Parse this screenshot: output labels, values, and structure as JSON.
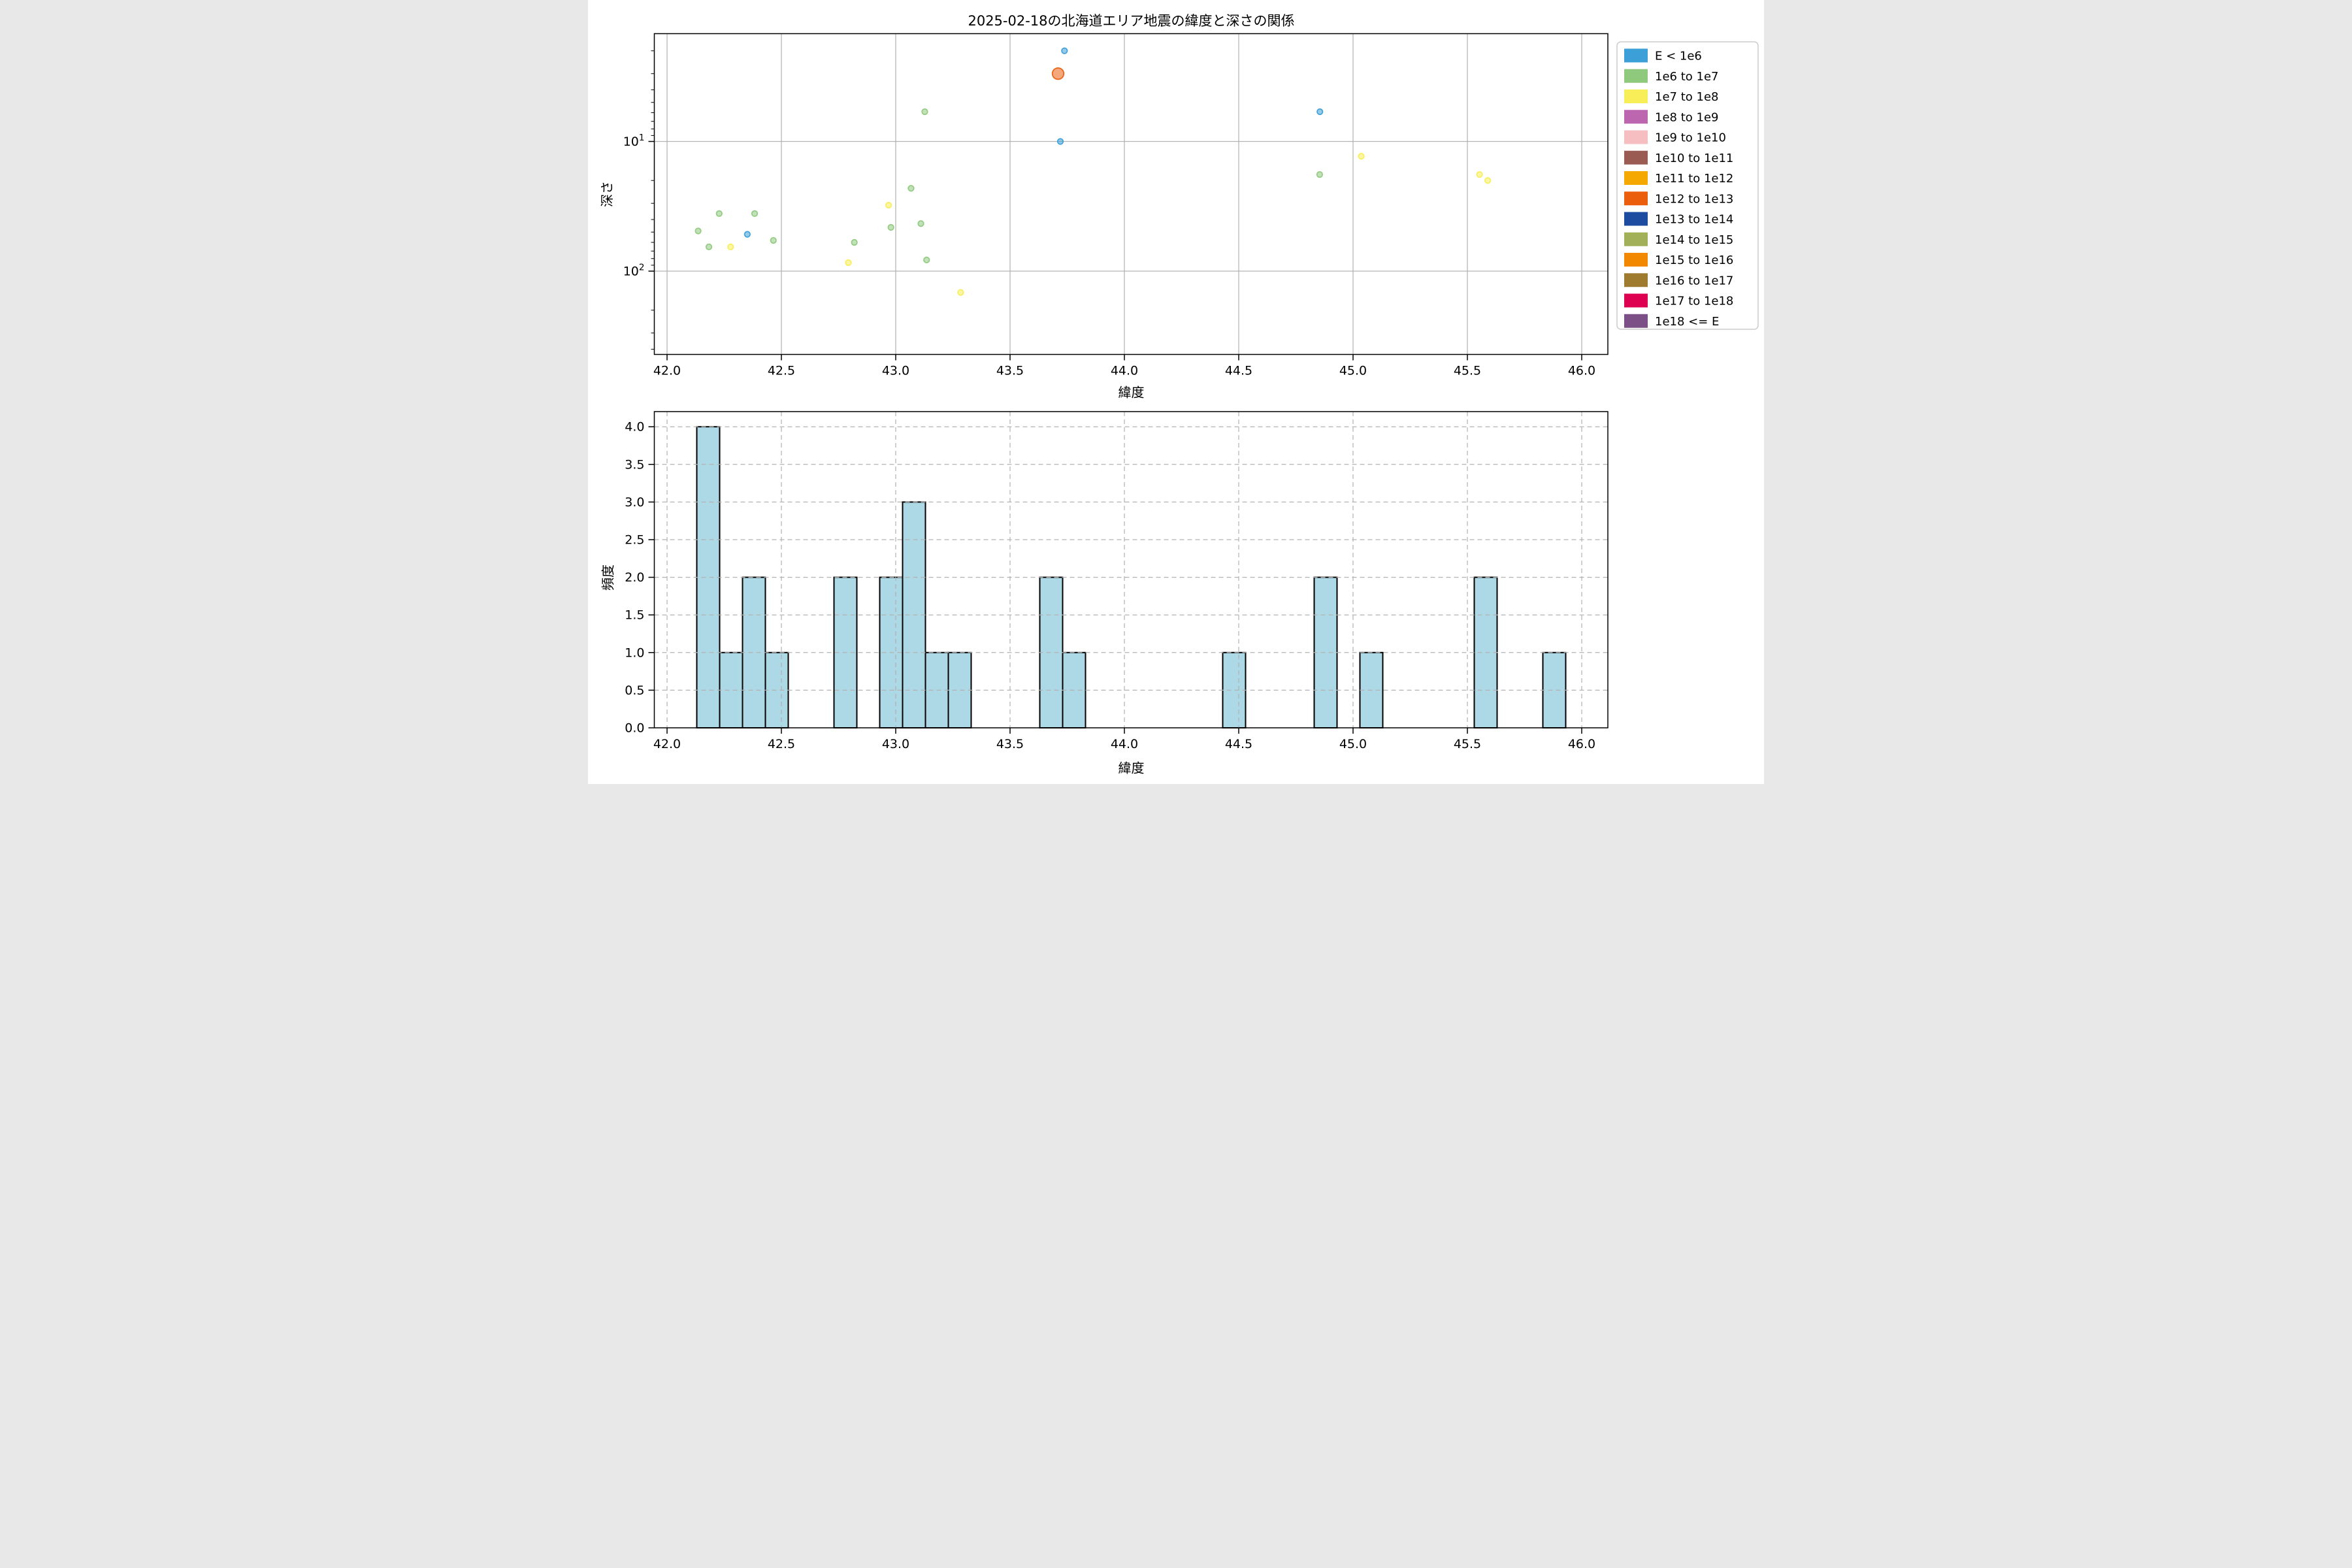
{
  "title": "2025-02-18の北海道エリア地震の緯度と深さの関係",
  "legend": {
    "items": [
      {
        "label": "E < 1e6",
        "color": "#3D9FD8"
      },
      {
        "label": "1e6 to 1e7",
        "color": "#8FC97E"
      },
      {
        "label": "1e7 to 1e8",
        "color": "#F7EE58"
      },
      {
        "label": "1e8 to 1e9",
        "color": "#BC66AF"
      },
      {
        "label": "1e9 to 1e10",
        "color": "#F6BEC1"
      },
      {
        "label": "1e10 to 1e11",
        "color": "#9A5B52"
      },
      {
        "label": "1e11 to 1e12",
        "color": "#F4A800"
      },
      {
        "label": "1e12 to 1e13",
        "color": "#EA5E0C"
      },
      {
        "label": "1e13 to 1e14",
        "color": "#1C4C9F"
      },
      {
        "label": "1e14 to 1e15",
        "color": "#A2B158"
      },
      {
        "label": "1e15 to 1e16",
        "color": "#F18800"
      },
      {
        "label": "1e16 to 1e17",
        "color": "#9E7B2F"
      },
      {
        "label": "1e17 to 1e18",
        "color": "#DE0051"
      },
      {
        "label": "1e18 <= E",
        "color": "#7D4F87"
      }
    ]
  },
  "chart_data": [
    {
      "type": "scatter",
      "title": "2025-02-18の北海道エリア地震の緯度と深さの関係",
      "xlabel": "緯度",
      "ylabel": "深さ",
      "x_range": [
        41.946,
        46.12
      ],
      "xticks": [
        42.0,
        42.5,
        43.0,
        43.5,
        44.0,
        44.5,
        45.0,
        45.5,
        46.0
      ],
      "y_scale": "log",
      "y_inverted": true,
      "y_range": [
        1.47,
        438
      ],
      "yticks": [
        10,
        100
      ],
      "grid": "solid",
      "legend_position": "outside-upper-right",
      "points": [
        {
          "lat": 42.136,
          "depth": 49,
          "bin": "1e6 to 1e7",
          "size": "small"
        },
        {
          "lat": 42.183,
          "depth": 65,
          "bin": "1e6 to 1e7",
          "size": "small"
        },
        {
          "lat": 42.228,
          "depth": 36,
          "bin": "1e6 to 1e7",
          "size": "small"
        },
        {
          "lat": 42.278,
          "depth": 65,
          "bin": "1e7 to 1e8",
          "size": "small"
        },
        {
          "lat": 42.351,
          "depth": 52,
          "bin": "E < 1e6",
          "size": "small"
        },
        {
          "lat": 42.383,
          "depth": 36,
          "bin": "1e6 to 1e7",
          "size": "small"
        },
        {
          "lat": 42.465,
          "depth": 58,
          "bin": "1e6 to 1e7",
          "size": "small"
        },
        {
          "lat": 42.793,
          "depth": 86,
          "bin": "1e7 to 1e8",
          "size": "small"
        },
        {
          "lat": 42.819,
          "depth": 60,
          "bin": "1e6 to 1e7",
          "size": "small"
        },
        {
          "lat": 42.969,
          "depth": 31,
          "bin": "1e7 to 1e8",
          "size": "small"
        },
        {
          "lat": 42.979,
          "depth": 46,
          "bin": "1e6 to 1e7",
          "size": "small"
        },
        {
          "lat": 43.067,
          "depth": 23,
          "bin": "1e6 to 1e7",
          "size": "small"
        },
        {
          "lat": 43.11,
          "depth": 43,
          "bin": "1e6 to 1e7",
          "size": "small"
        },
        {
          "lat": 43.127,
          "depth": 5.9,
          "bin": "1e6 to 1e7",
          "size": "small"
        },
        {
          "lat": 43.135,
          "depth": 82,
          "bin": "1e6 to 1e7",
          "size": "small"
        },
        {
          "lat": 43.284,
          "depth": 146,
          "bin": "1e7 to 1e8",
          "size": "small"
        },
        {
          "lat": 43.71,
          "depth": 3.0,
          "bin": "1e12 to 1e13",
          "size": "large"
        },
        {
          "lat": 43.738,
          "depth": 2.0,
          "bin": "E < 1e6",
          "size": "small"
        },
        {
          "lat": 43.72,
          "depth": 10.0,
          "bin": "E < 1e6",
          "size": "small"
        },
        {
          "lat": 44.855,
          "depth": 5.9,
          "bin": "E < 1e6",
          "size": "small"
        },
        {
          "lat": 44.854,
          "depth": 18,
          "bin": "1e6 to 1e7",
          "size": "small"
        },
        {
          "lat": 45.036,
          "depth": 13,
          "bin": "1e7 to 1e8",
          "size": "small"
        },
        {
          "lat": 45.553,
          "depth": 18,
          "bin": "1e7 to 1e8",
          "size": "small"
        },
        {
          "lat": 45.589,
          "depth": 20,
          "bin": "1e7 to 1e8",
          "size": "small"
        }
      ]
    },
    {
      "type": "bar",
      "title": "",
      "xlabel": "緯度",
      "ylabel": "頻度",
      "x_range": [
        41.946,
        46.12
      ],
      "xticks": [
        42.0,
        42.5,
        43.0,
        43.5,
        44.0,
        44.5,
        45.0,
        45.5,
        46.0
      ],
      "y_range": [
        0,
        4.2
      ],
      "yticks": [
        0.0,
        0.5,
        1.0,
        1.5,
        2.0,
        2.5,
        3.0,
        3.5,
        4.0
      ],
      "grid": "dashed",
      "bar_color": "#ADD8E6",
      "bar_edge_color": "#000000",
      "bin_width": 0.1,
      "bars": [
        {
          "x0": 42.13,
          "x1": 42.23,
          "count": 4
        },
        {
          "x0": 42.23,
          "x1": 42.33,
          "count": 1
        },
        {
          "x0": 42.33,
          "x1": 42.43,
          "count": 2
        },
        {
          "x0": 42.43,
          "x1": 42.53,
          "count": 1
        },
        {
          "x0": 42.73,
          "x1": 42.83,
          "count": 2
        },
        {
          "x0": 42.93,
          "x1": 43.03,
          "count": 2
        },
        {
          "x0": 43.03,
          "x1": 43.13,
          "count": 3
        },
        {
          "x0": 43.13,
          "x1": 43.23,
          "count": 1
        },
        {
          "x0": 43.23,
          "x1": 43.33,
          "count": 1
        },
        {
          "x0": 43.63,
          "x1": 43.73,
          "count": 2
        },
        {
          "x0": 43.73,
          "x1": 43.83,
          "count": 1
        },
        {
          "x0": 44.43,
          "x1": 44.53,
          "count": 1
        },
        {
          "x0": 44.83,
          "x1": 44.93,
          "count": 2
        },
        {
          "x0": 45.03,
          "x1": 45.13,
          "count": 1
        },
        {
          "x0": 45.53,
          "x1": 45.63,
          "count": 2
        },
        {
          "x0": 45.83,
          "x1": 45.93,
          "count": 1
        }
      ]
    }
  ]
}
